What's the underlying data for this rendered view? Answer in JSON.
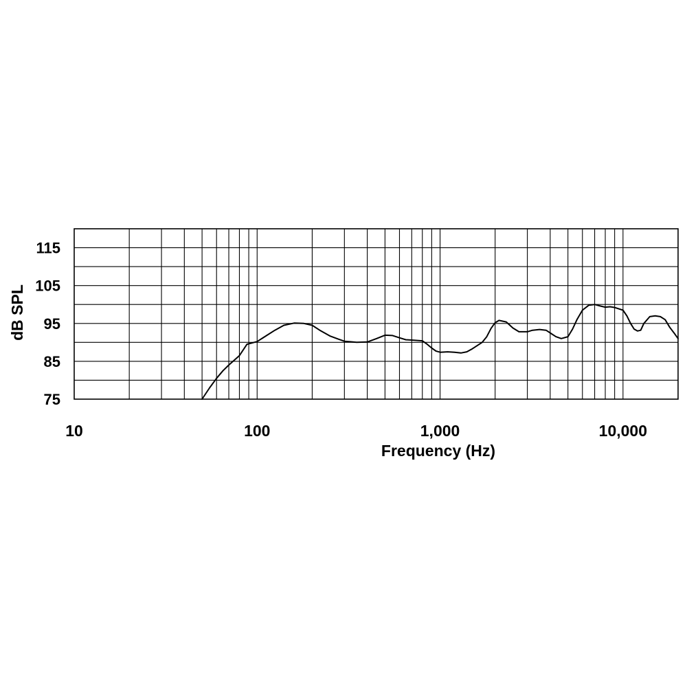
{
  "chart_data": {
    "type": "line",
    "title": "",
    "xlabel": "Frequency (Hz)",
    "ylabel": "dB SPL",
    "x_scale": "log",
    "xlim": [
      10,
      20000
    ],
    "ylim": [
      75,
      120
    ],
    "grid": true,
    "x_ticks": [
      {
        "value": 10,
        "label": "10"
      },
      {
        "value": 100,
        "label": "100"
      },
      {
        "value": 1000,
        "label": "1,000"
      },
      {
        "value": 10000,
        "label": "10,000"
      }
    ],
    "y_ticks": [
      {
        "value": 75,
        "label": "75"
      },
      {
        "value": 85,
        "label": "85"
      },
      {
        "value": 95,
        "label": "95"
      },
      {
        "value": 105,
        "label": "105"
      },
      {
        "value": 115,
        "label": "115"
      }
    ],
    "series": [
      {
        "color": "#000000",
        "points": [
          [
            50,
            75
          ],
          [
            55,
            78
          ],
          [
            60,
            80.5
          ],
          [
            65,
            82.5
          ],
          [
            70,
            84
          ],
          [
            80,
            86.5
          ],
          [
            88,
            89.5
          ],
          [
            100,
            90.2
          ],
          [
            110,
            91.5
          ],
          [
            125,
            93.2
          ],
          [
            140,
            94.5
          ],
          [
            160,
            95.1
          ],
          [
            180,
            95
          ],
          [
            200,
            94.5
          ],
          [
            220,
            93.2
          ],
          [
            250,
            91.7
          ],
          [
            280,
            90.8
          ],
          [
            300,
            90.3
          ],
          [
            350,
            90
          ],
          [
            400,
            90.1
          ],
          [
            450,
            91
          ],
          [
            500,
            91.9
          ],
          [
            550,
            91.8
          ],
          [
            600,
            91.2
          ],
          [
            650,
            90.7
          ],
          [
            700,
            90.6
          ],
          [
            800,
            90.4
          ],
          [
            850,
            89.5
          ],
          [
            900,
            88.5
          ],
          [
            950,
            87.7
          ],
          [
            1000,
            87.4
          ],
          [
            1100,
            87.5
          ],
          [
            1200,
            87.4
          ],
          [
            1300,
            87.2
          ],
          [
            1400,
            87.5
          ],
          [
            1500,
            88.3
          ],
          [
            1700,
            90
          ],
          [
            1800,
            91.5
          ],
          [
            1900,
            93.7
          ],
          [
            2000,
            95.2
          ],
          [
            2100,
            95.8
          ],
          [
            2300,
            95.4
          ],
          [
            2500,
            93.8
          ],
          [
            2700,
            92.8
          ],
          [
            3000,
            92.8
          ],
          [
            3200,
            93.2
          ],
          [
            3500,
            93.4
          ],
          [
            3800,
            93.2
          ],
          [
            4000,
            92.5
          ],
          [
            4300,
            91.5
          ],
          [
            4600,
            91
          ],
          [
            5000,
            91.5
          ],
          [
            5300,
            93.5
          ],
          [
            5600,
            96
          ],
          [
            6000,
            98.5
          ],
          [
            6500,
            99.8
          ],
          [
            7000,
            100
          ],
          [
            7500,
            99.6
          ],
          [
            8000,
            99.3
          ],
          [
            8500,
            99.4
          ],
          [
            9000,
            99.2
          ],
          [
            10000,
            98.5
          ],
          [
            10500,
            97
          ],
          [
            11000,
            95
          ],
          [
            11500,
            93.5
          ],
          [
            12000,
            93
          ],
          [
            12500,
            93.2
          ],
          [
            13000,
            95
          ],
          [
            14000,
            96.8
          ],
          [
            15000,
            97
          ],
          [
            16000,
            96.8
          ],
          [
            17000,
            96
          ],
          [
            18000,
            94
          ],
          [
            19000,
            92.5
          ],
          [
            20000,
            91
          ]
        ]
      }
    ]
  }
}
